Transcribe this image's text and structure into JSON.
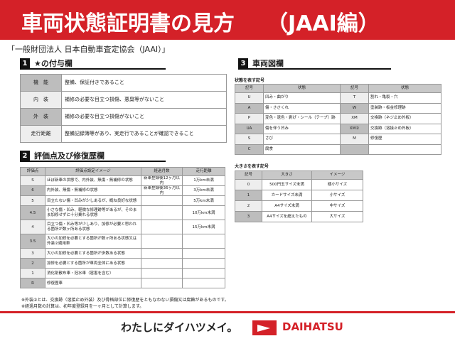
{
  "header": {
    "title": "車両状態証明書の見方　　（JAAI編）"
  },
  "subtitle": "「一般財団法人 日本自動車査定協会（JAAI）」",
  "section1": {
    "num": "1",
    "title": "★の付与欄",
    "rows": [
      [
        "機　能",
        "整備、保証付きであること"
      ],
      [
        "内　装",
        "補修の必要な目立つ損傷、悪臭等がないこと"
      ],
      [
        "外　装",
        "補修の必要な目立つ損傷がないこと"
      ],
      [
        "走行距離",
        "整備記録簿等があり、実走行であることが確認できること"
      ]
    ]
  },
  "section2": {
    "num": "2",
    "title": "評価点及び修復歴欄",
    "headers": [
      "評価点",
      "評価点設定イメージ",
      "経過月数",
      "走行距離"
    ],
    "rows": [
      [
        "S",
        "ほぼ新車の状態で、内外装、無傷・無補修の状態",
        "新車登録後12ヶ月以内",
        "1万km未満"
      ],
      [
        "6",
        "内外装、無傷・無補修の状態",
        "新車登録後36ヶ月以内",
        "3万km未満"
      ],
      [
        "5",
        "目立たない傷・凹みが少しあるが、概ね良好な状態",
        "",
        "5万km未満"
      ],
      [
        "4.5",
        "小さな傷・凹み、軽微な修理跡等があるが、そのまま加修せずに十分乗れる状態",
        "",
        "10万km未満"
      ],
      [
        "4",
        "目立つ傷・凹み等が少しあり、加修が必要と思われる箇所が数ヶ所ある状態",
        "",
        "15万km未満"
      ],
      [
        "3.5",
        "大小の加修を必要とする箇所が数ヶ所ある状態又は外装②適用車",
        "",
        ""
      ],
      [
        "3",
        "大小の加修を必要とする箇所が多数ある状態",
        "",
        ""
      ],
      [
        "2",
        "加修を必要とする箇所が車両全体にある状態",
        "",
        ""
      ],
      [
        "1",
        "消化剤散布車・冠水車（雹害を含む）",
        "",
        ""
      ],
      [
        "R",
        "修復歴車",
        "",
        ""
      ]
    ]
  },
  "notes": [
    "※外装②とは、交換跡（溶接止め外装）及び骨格部位に修復歴をともなわない損傷又は腐蝕があるものです。",
    "※経過月数の計算は、初年度登録月を一ヶ月として計算します。"
  ],
  "section3": {
    "num": "3",
    "title": "車両図欄",
    "state_label": "状態を表す記号",
    "state_headers": [
      "記号",
      "状態",
      "記号",
      "状態"
    ],
    "state_rows": [
      [
        "U",
        "凹み・曲がり",
        "T",
        "割れ・亀裂・穴"
      ],
      [
        "A",
        "傷・ささくれ",
        "W",
        "塗装跡・板金修理跡"
      ],
      [
        "P",
        "変色・退色・剥げ・シール（テープ）跡",
        "XM",
        "交換跡（ネジ止め外板）"
      ],
      [
        "UA",
        "傷を伴う凹み",
        "XM②",
        "交換跡（溶接止め外板）"
      ],
      [
        "S",
        "さび",
        "M",
        "修復歴"
      ],
      [
        "C",
        "腐食",
        "",
        ""
      ]
    ],
    "size_label": "大きさを表す記号",
    "size_headers": [
      "記号",
      "大きさ",
      "イメージ"
    ],
    "size_rows": [
      [
        "0",
        "500円玉サイズ未満",
        "極小サイズ"
      ],
      [
        "1",
        "カードサイズ未満",
        "小サイズ"
      ],
      [
        "2",
        "A4サイズ未満",
        "中サイズ"
      ],
      [
        "3",
        "A4サイズを超えたもの",
        "大サイズ"
      ]
    ]
  },
  "footer": {
    "slogan": "わたしにダイハツメイ。",
    "brand": "DAIHATSU",
    "brand_color": "#d42128"
  }
}
